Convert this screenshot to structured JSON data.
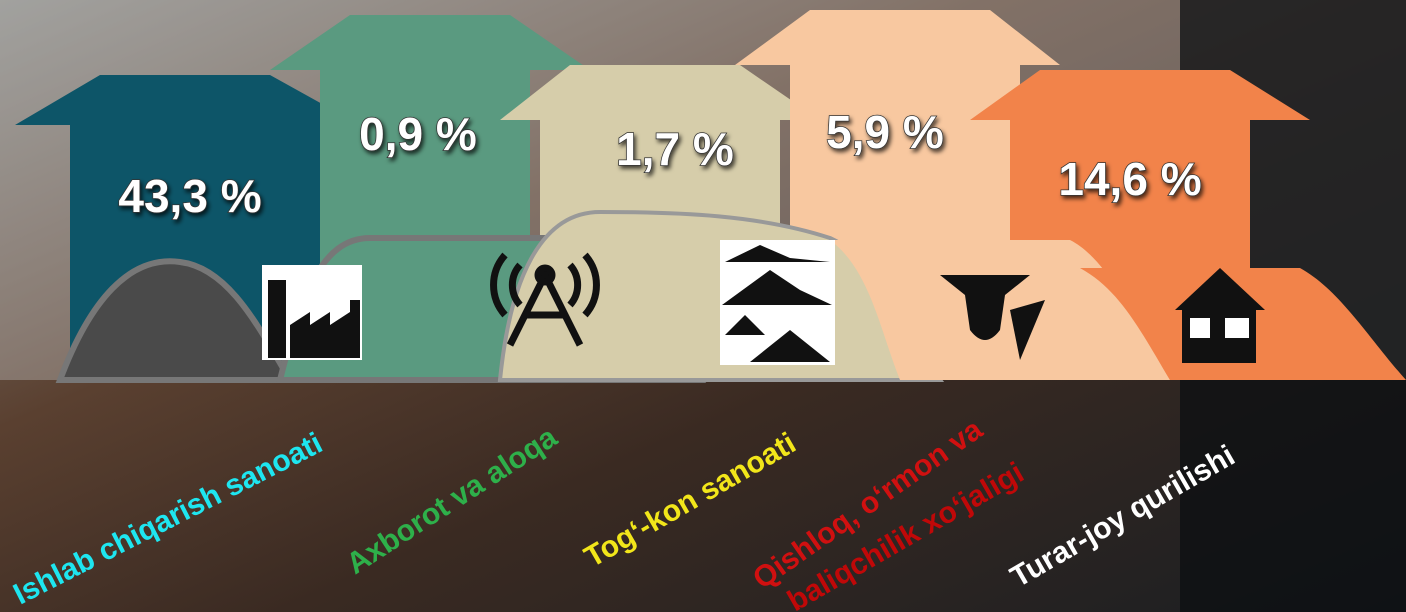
{
  "items": [
    {
      "value": "43,3 %",
      "label": [
        "Ishlab chiqarish sanoati"
      ]
    },
    {
      "value": "0,9 %",
      "label": [
        "Axborot va aloqa"
      ]
    },
    {
      "value": "1,7 %",
      "label": [
        "Tog‘-kon sanoati"
      ]
    },
    {
      "value": "5,9 %",
      "label": [
        "Qishloq, o‘rmon va",
        "baliqchilik xo‘jaligi"
      ]
    },
    {
      "value": "14,6 %",
      "label": [
        "Turar-joy qurilishi"
      ]
    }
  ]
}
